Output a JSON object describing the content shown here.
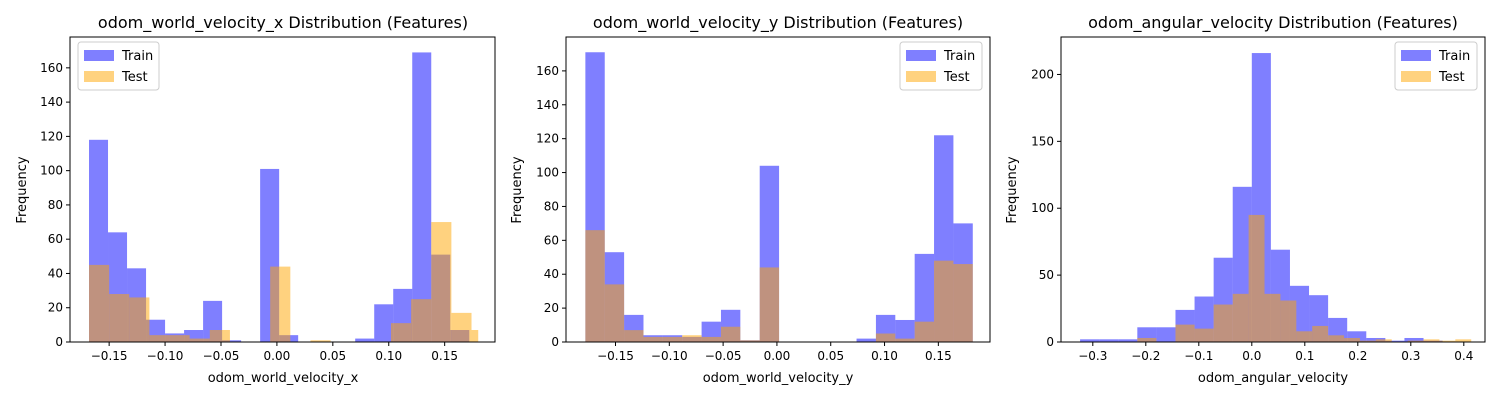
{
  "colors": {
    "train": "#0000ff",
    "test": "#ffa500",
    "train_alpha": 0.5,
    "test_alpha": 0.5
  },
  "chart_data": [
    {
      "type": "histogram",
      "title": "odom_world_velocity_x Distribution (Features)",
      "xlabel": "odom_world_velocity_x",
      "ylabel": "Frequency",
      "xlim": [
        -0.185,
        0.195
      ],
      "ylim": [
        0,
        178
      ],
      "xticks": [
        -0.15,
        -0.1,
        -0.05,
        0.0,
        0.05,
        0.1,
        0.15
      ],
      "xtick_labels": [
        "−0.15",
        "−0.10",
        "−0.05",
        "0.00",
        "0.05",
        "0.10",
        "0.15"
      ],
      "yticks": [
        0,
        20,
        40,
        60,
        80,
        100,
        120,
        140,
        160
      ],
      "yticks_labels": [
        "0",
        "20",
        "40",
        "60",
        "80",
        "100",
        "120",
        "140",
        "160"
      ],
      "legend": {
        "placement": "top-left",
        "entries": [
          "Train",
          "Test"
        ]
      },
      "series": [
        {
          "name": "Train",
          "bins": [
            [
              -0.168,
              -0.151
            ],
            [
              -0.151,
              -0.134
            ],
            [
              -0.134,
              -0.117
            ],
            [
              -0.117,
              -0.1
            ],
            [
              -0.1,
              -0.083
            ],
            [
              -0.083,
              -0.066
            ],
            [
              -0.066,
              -0.049
            ],
            [
              -0.049,
              -0.032
            ],
            [
              -0.032,
              -0.015
            ],
            [
              -0.015,
              0.002
            ],
            [
              0.002,
              0.019
            ],
            [
              0.019,
              0.036
            ],
            [
              0.036,
              0.053
            ],
            [
              0.053,
              0.07
            ],
            [
              0.07,
              0.087
            ],
            [
              0.087,
              0.104
            ],
            [
              0.104,
              0.121
            ],
            [
              0.121,
              0.138
            ],
            [
              0.138,
              0.155
            ],
            [
              0.155,
              0.172
            ]
          ],
          "values": [
            118,
            64,
            43,
            13,
            5,
            7,
            24,
            1,
            0,
            101,
            4,
            0,
            0,
            0,
            2,
            22,
            31,
            169,
            51,
            7
          ]
        },
        {
          "name": "Test",
          "bins": [
            [
              -0.168,
              -0.15
            ],
            [
              -0.15,
              -0.132
            ],
            [
              -0.132,
              -0.114
            ],
            [
              -0.114,
              -0.096
            ],
            [
              -0.096,
              -0.078
            ],
            [
              -0.078,
              -0.06
            ],
            [
              -0.06,
              -0.042
            ],
            [
              -0.042,
              -0.024
            ],
            [
              -0.024,
              -0.006
            ],
            [
              -0.006,
              0.012
            ],
            [
              0.012,
              0.03
            ],
            [
              0.03,
              0.048
            ],
            [
              0.048,
              0.066
            ],
            [
              0.066,
              0.084
            ],
            [
              0.084,
              0.102
            ],
            [
              0.102,
              0.12
            ],
            [
              0.12,
              0.138
            ],
            [
              0.138,
              0.156
            ],
            [
              0.156,
              0.174
            ],
            [
              0.174,
              0.18
            ]
          ],
          "values": [
            45,
            28,
            26,
            4,
            4,
            2,
            7,
            0,
            0,
            44,
            0,
            1,
            0,
            0,
            0,
            11,
            25,
            70,
            17,
            7
          ]
        }
      ]
    },
    {
      "type": "histogram",
      "title": "odom_world_velocity_y Distribution (Features)",
      "xlabel": "odom_world_velocity_y",
      "ylabel": "Frequency",
      "xlim": [
        -0.196,
        0.198
      ],
      "ylim": [
        0,
        180
      ],
      "xticks": [
        -0.15,
        -0.1,
        -0.05,
        0.0,
        0.05,
        0.1,
        0.15
      ],
      "xtick_labels": [
        "−0.15",
        "−0.10",
        "−0.05",
        "0.00",
        "0.05",
        "0.10",
        "0.15"
      ],
      "yticks": [
        0,
        20,
        40,
        60,
        80,
        100,
        120,
        140,
        160
      ],
      "yticks_labels": [
        "0",
        "20",
        "40",
        "60",
        "80",
        "100",
        "120",
        "140",
        "160"
      ],
      "legend": {
        "placement": "top-right",
        "entries": [
          "Train",
          "Test"
        ]
      },
      "series": [
        {
          "name": "Train",
          "bins": [
            [
              -0.178,
              -0.16
            ],
            [
              -0.16,
              -0.142
            ],
            [
              -0.142,
              -0.124
            ],
            [
              -0.124,
              -0.106
            ],
            [
              -0.106,
              -0.088
            ],
            [
              -0.088,
              -0.07
            ],
            [
              -0.07,
              -0.052
            ],
            [
              -0.052,
              -0.034
            ],
            [
              -0.034,
              -0.016
            ],
            [
              -0.016,
              0.002
            ],
            [
              0.002,
              0.02
            ],
            [
              0.02,
              0.038
            ],
            [
              0.038,
              0.056
            ],
            [
              0.056,
              0.074
            ],
            [
              0.074,
              0.092
            ],
            [
              0.092,
              0.11
            ],
            [
              0.11,
              0.128
            ],
            [
              0.128,
              0.146
            ],
            [
              0.146,
              0.164
            ],
            [
              0.164,
              0.182
            ]
          ],
          "values": [
            171,
            53,
            16,
            4,
            4,
            3,
            12,
            19,
            1,
            104,
            0,
            0,
            0,
            0,
            2,
            16,
            13,
            52,
            122,
            70
          ]
        },
        {
          "name": "Test",
          "bins": [
            [
              -0.178,
              -0.16
            ],
            [
              -0.16,
              -0.142
            ],
            [
              -0.142,
              -0.124
            ],
            [
              -0.124,
              -0.106
            ],
            [
              -0.106,
              -0.088
            ],
            [
              -0.088,
              -0.07
            ],
            [
              -0.07,
              -0.052
            ],
            [
              -0.052,
              -0.034
            ],
            [
              -0.034,
              -0.016
            ],
            [
              -0.016,
              0.002
            ],
            [
              0.002,
              0.02
            ],
            [
              0.02,
              0.038
            ],
            [
              0.038,
              0.056
            ],
            [
              0.056,
              0.074
            ],
            [
              0.074,
              0.092
            ],
            [
              0.092,
              0.11
            ],
            [
              0.11,
              0.128
            ],
            [
              0.128,
              0.146
            ],
            [
              0.146,
              0.164
            ],
            [
              0.164,
              0.182
            ]
          ],
          "values": [
            66,
            34,
            7,
            3,
            3,
            4,
            3,
            9,
            1,
            44,
            0,
            0,
            0,
            0,
            0,
            5,
            2,
            12,
            48,
            46
          ]
        }
      ]
    },
    {
      "type": "histogram",
      "title": "odom_angular_velocity Distribution (Features)",
      "xlabel": "odom_angular_velocity",
      "ylabel": "Frequency",
      "xlim": [
        -0.36,
        0.44
      ],
      "ylim": [
        0,
        228
      ],
      "xticks": [
        -0.3,
        -0.2,
        -0.1,
        0.0,
        0.1,
        0.2,
        0.3,
        0.4
      ],
      "xtick_labels": [
        "−0.3",
        "−0.2",
        "−0.1",
        "0.0",
        "0.1",
        "0.2",
        "0.3",
        "0.4"
      ],
      "yticks": [
        0,
        50,
        100,
        150,
        200
      ],
      "yticks_labels": [
        "0",
        "50",
        "100",
        "150",
        "200"
      ],
      "legend": {
        "placement": "top-right",
        "entries": [
          "Train",
          "Test"
        ]
      },
      "series": [
        {
          "name": "Train",
          "bins": [
            [
              -0.324,
              -0.288
            ],
            [
              -0.288,
              -0.252
            ],
            [
              -0.252,
              -0.216
            ],
            [
              -0.216,
              -0.18
            ],
            [
              -0.18,
              -0.144
            ],
            [
              -0.144,
              -0.108
            ],
            [
              -0.108,
              -0.072
            ],
            [
              -0.072,
              -0.036
            ],
            [
              -0.036,
              0.0
            ],
            [
              0.0,
              0.036
            ],
            [
              0.036,
              0.072
            ],
            [
              0.072,
              0.108
            ],
            [
              0.108,
              0.144
            ],
            [
              0.144,
              0.18
            ],
            [
              0.18,
              0.216
            ],
            [
              0.216,
              0.252
            ],
            [
              0.252,
              0.288
            ],
            [
              0.288,
              0.324
            ],
            [
              0.324,
              0.36
            ]
          ],
          "values": [
            2,
            2,
            2,
            11,
            11,
            24,
            34,
            63,
            116,
            216,
            69,
            42,
            35,
            18,
            8,
            3,
            1,
            3,
            1
          ]
        },
        {
          "name": "Test",
          "bins": [
            [
              -0.324,
              -0.288
            ],
            [
              -0.288,
              -0.252
            ],
            [
              -0.252,
              -0.216
            ],
            [
              -0.216,
              -0.18
            ],
            [
              -0.18,
              -0.144
            ],
            [
              -0.144,
              -0.108
            ],
            [
              -0.108,
              -0.072
            ],
            [
              -0.072,
              -0.036
            ],
            [
              -0.036,
              -0.006
            ],
            [
              -0.006,
              0.024
            ],
            [
              0.024,
              0.054
            ],
            [
              0.054,
              0.084
            ],
            [
              0.084,
              0.114
            ],
            [
              0.114,
              0.144
            ],
            [
              0.144,
              0.174
            ],
            [
              0.174,
              0.204
            ],
            [
              0.204,
              0.234
            ],
            [
              0.234,
              0.264
            ],
            [
              0.264,
              0.294
            ],
            [
              0.294,
              0.324
            ],
            [
              0.324,
              0.354
            ],
            [
              0.354,
              0.384
            ],
            [
              0.384,
              0.414
            ]
          ],
          "values": [
            0,
            0,
            0,
            3,
            0,
            13,
            10,
            28,
            36,
            95,
            36,
            31,
            8,
            12,
            5,
            3,
            1,
            2,
            0,
            1,
            2,
            1,
            2
          ]
        }
      ]
    }
  ]
}
